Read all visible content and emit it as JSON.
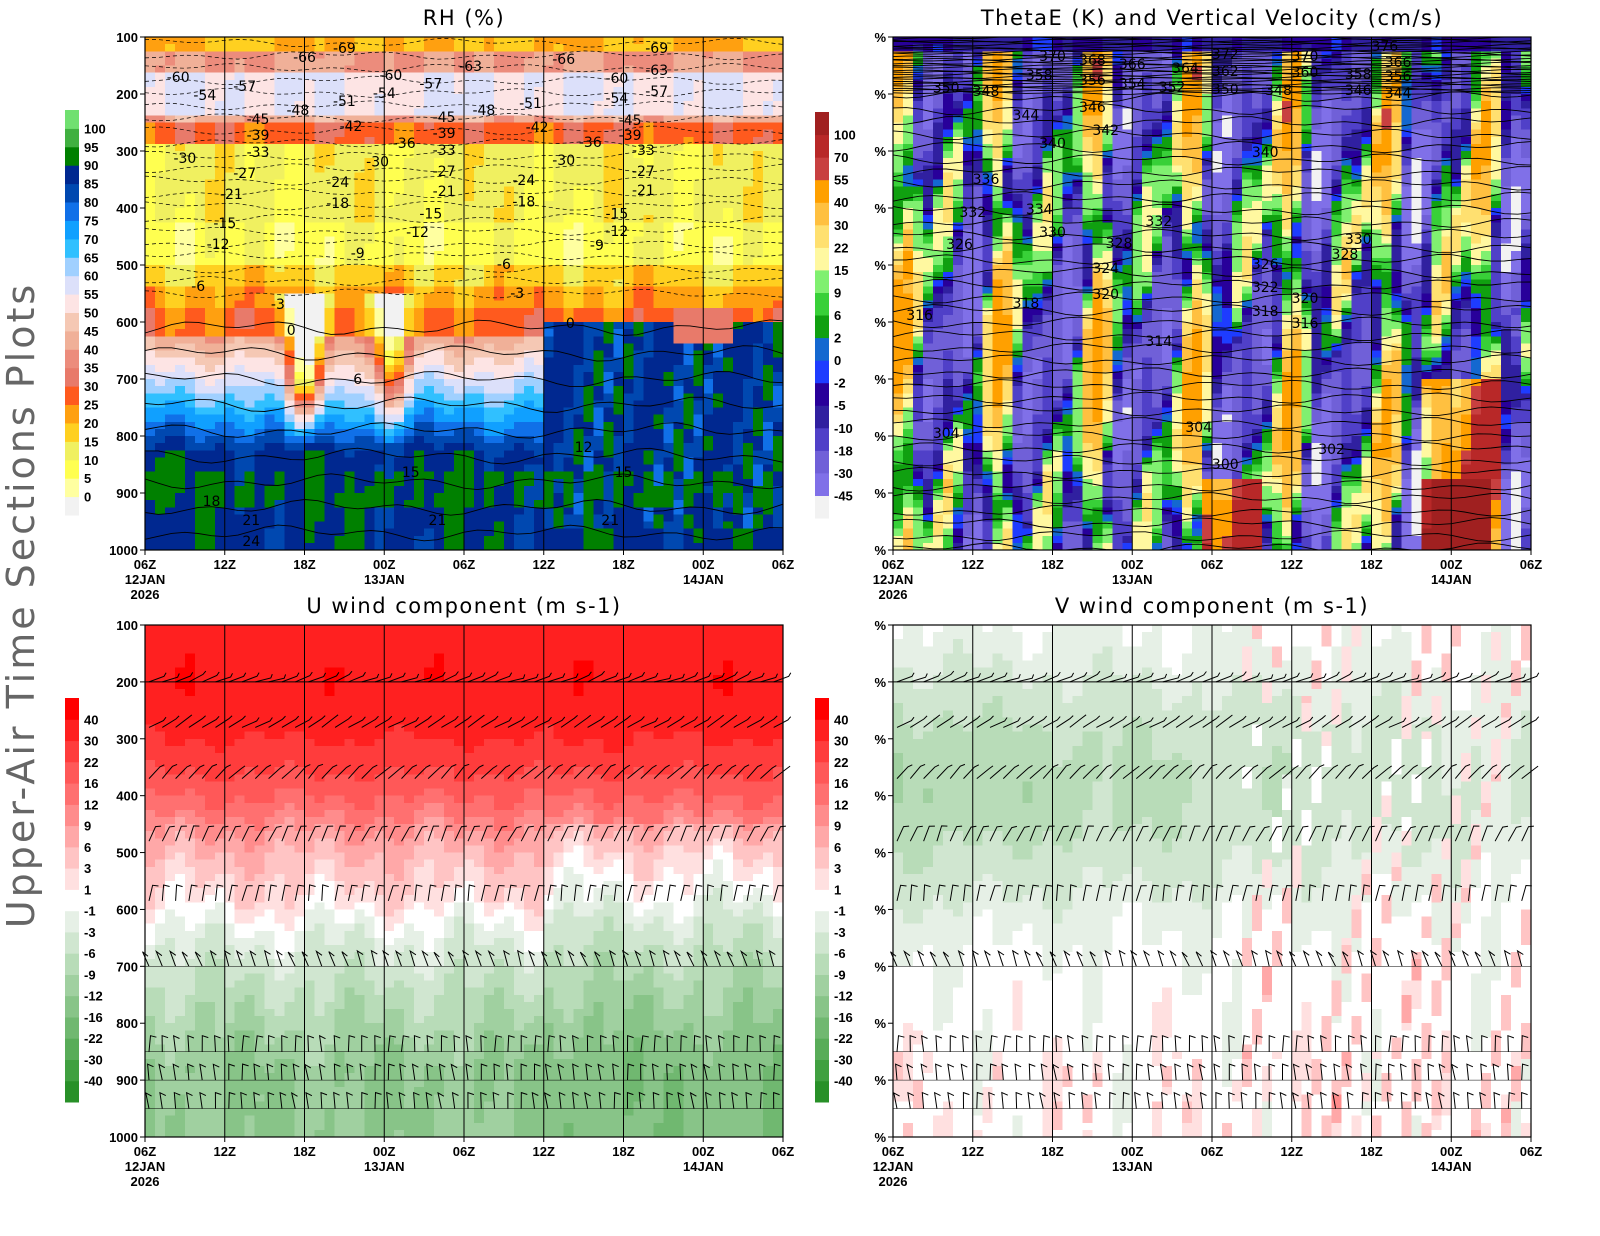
{
  "side_title": "Upper-Air Time Sections Plots",
  "xlim": [
    "2026-01-12T06:00",
    "2026-01-14T06:00"
  ],
  "xticks": [
    {
      "label": "06Z",
      "date": "12JAN",
      "year": "2026"
    },
    {
      "label": "12Z",
      "date": "",
      "year": ""
    },
    {
      "label": "18Z",
      "date": "",
      "year": ""
    },
    {
      "label": "00Z",
      "date": "13JAN",
      "year": ""
    },
    {
      "label": "06Z",
      "date": "",
      "year": ""
    },
    {
      "label": "12Z",
      "date": "",
      "year": ""
    },
    {
      "label": "18Z",
      "date": "",
      "year": ""
    },
    {
      "label": "00Z",
      "date": "14JAN",
      "year": ""
    },
    {
      "label": "06Z",
      "date": "",
      "year": ""
    }
  ],
  "chart_data": [
    {
      "id": "rh",
      "type": "heatmap",
      "title": "RH (%)",
      "ylim": [
        1000,
        100
      ],
      "yticks": [
        "100",
        "200",
        "300",
        "400",
        "500",
        "600",
        "700",
        "800",
        "900",
        "1000"
      ],
      "colorbar": {
        "levels": [
          0,
          5,
          10,
          15,
          20,
          25,
          30,
          35,
          40,
          45,
          50,
          55,
          60,
          65,
          70,
          75,
          80,
          85,
          90,
          95,
          100
        ],
        "colors": [
          "#f2f2f2",
          "#ffffa0",
          "#ffff50",
          "#f0f060",
          "#ffd020",
          "#ffa010",
          "#ff5a1e",
          "#e87a6a",
          "#ec8c7c",
          "#f0b098",
          "#f5c8b4",
          "#fde4e4",
          "#dce0fa",
          "#a0d0ff",
          "#30c0ff",
          "#10a0ff",
          "#1070e8",
          "#0048b0",
          "#002890",
          "#008000",
          "#40b040",
          "#70e070"
        ]
      },
      "contour_labels": [
        [
          -60,
          "2026-01-12T08:30",
          170
        ],
        [
          -54,
          "2026-01-12T10:30",
          202
        ],
        [
          -57,
          "2026-01-12T13:30",
          186
        ],
        [
          -66,
          "2026-01-12T18:00",
          135
        ],
        [
          -69,
          "2026-01-12T21:00",
          119
        ],
        [
          -48,
          "2026-01-12T17:30",
          228
        ],
        [
          -51,
          "2026-01-12T21:00",
          212
        ],
        [
          -60,
          "2026-01-13T00:30",
          167
        ],
        [
          -54,
          "2026-01-13T00:00",
          198
        ],
        [
          -57,
          "2026-01-13T03:30",
          182
        ],
        [
          -63,
          "2026-01-13T06:30",
          151
        ],
        [
          -45,
          "2026-01-12T14:30",
          244
        ],
        [
          -39,
          "2026-01-12T14:30",
          272
        ],
        [
          -33,
          "2026-01-12T14:30",
          302
        ],
        [
          -30,
          "2026-01-12T09:00",
          312
        ],
        [
          -27,
          "2026-01-12T13:30",
          339
        ],
        [
          -21,
          "2026-01-12T12:30",
          375
        ],
        [
          -15,
          "2026-01-12T12:00",
          426
        ],
        [
          -12,
          "2026-01-12T11:30",
          463
        ],
        [
          -6,
          "2026-01-12T10:00",
          537
        ],
        [
          -3,
          "2026-01-12T16:00",
          568
        ],
        [
          0,
          "2026-01-12T17:00",
          614
        ],
        [
          6,
          "2026-01-12T22:00",
          700
        ],
        [
          -42,
          "2026-01-12T21:30",
          256
        ],
        [
          -36,
          "2026-01-13T01:30",
          286
        ],
        [
          -30,
          "2026-01-12T23:30",
          318
        ],
        [
          -24,
          "2026-01-12T20:30",
          354
        ],
        [
          -18,
          "2026-01-12T20:30",
          391
        ],
        [
          -9,
          "2026-01-12T22:00",
          479
        ],
        [
          -45,
          "2026-01-13T04:30",
          240
        ],
        [
          -39,
          "2026-01-13T04:30",
          268
        ],
        [
          -33,
          "2026-01-13T04:30",
          298
        ],
        [
          -27,
          "2026-01-13T04:30",
          335
        ],
        [
          -21,
          "2026-01-13T04:30",
          370
        ],
        [
          -15,
          "2026-01-13T03:30",
          410
        ],
        [
          -12,
          "2026-01-13T02:30",
          442
        ],
        [
          -48,
          "2026-01-13T07:30",
          228
        ],
        [
          -51,
          "2026-01-13T11:00",
          216
        ],
        [
          -42,
          "2026-01-13T11:30",
          258
        ],
        [
          -24,
          "2026-01-13T10:30",
          351
        ],
        [
          -18,
          "2026-01-13T10:30",
          389
        ],
        [
          -6,
          "2026-01-13T09:00",
          498
        ],
        [
          -3,
          "2026-01-13T10:00",
          549
        ],
        [
          0,
          "2026-01-13T14:00",
          602
        ],
        [
          -66,
          "2026-01-13T13:30",
          139
        ],
        [
          -60,
          "2026-01-13T17:30",
          172
        ],
        [
          -54,
          "2026-01-13T17:30",
          207
        ],
        [
          -63,
          "2026-01-13T20:30",
          158
        ],
        [
          -57,
          "2026-01-13T20:30",
          195
        ],
        [
          -69,
          "2026-01-13T20:30",
          119
        ],
        [
          -45,
          "2026-01-13T18:30",
          246
        ],
        [
          -39,
          "2026-01-13T18:30",
          272
        ],
        [
          -36,
          "2026-01-13T15:30",
          284
        ],
        [
          -33,
          "2026-01-13T19:30",
          298
        ],
        [
          -27,
          "2026-01-13T19:30",
          335
        ],
        [
          -21,
          "2026-01-13T19:30",
          368
        ],
        [
          -15,
          "2026-01-13T17:30",
          410
        ],
        [
          -12,
          "2026-01-13T17:30",
          440
        ],
        [
          -9,
          "2026-01-13T16:00",
          465
        ],
        [
          -30,
          "2026-01-13T13:30",
          316
        ],
        [
          12,
          "2026-01-13T15:00",
          819
        ],
        [
          15,
          "2026-01-13T02:00",
          863
        ],
        [
          15,
          "2026-01-13T18:00",
          863
        ],
        [
          18,
          "2026-01-12T11:00",
          914
        ],
        [
          21,
          "2026-01-12T14:00",
          947
        ],
        [
          21,
          "2026-01-13T04:00",
          947
        ],
        [
          21,
          "2026-01-13T17:00",
          947
        ],
        [
          24,
          "2026-01-12T14:00",
          984
        ]
      ]
    },
    {
      "id": "thetae",
      "type": "heatmap",
      "title": "ThetaE (K) and Vertical Velocity (cm/s)",
      "ylim": [
        1000,
        100
      ],
      "yticks": [
        "%",
        "%",
        "%",
        "%",
        "%",
        "%",
        "%",
        "%",
        "%",
        "%"
      ],
      "colorbar": {
        "levels": [
          -45,
          -30,
          -18,
          -10,
          -5,
          -2,
          0,
          2,
          6,
          9,
          15,
          22,
          30,
          40,
          55,
          70,
          100
        ],
        "colors": [
          "#f2f2f2",
          "#8070e8",
          "#7060d8",
          "#5040c8",
          "#3020a0",
          "#28009a",
          "#1e3cff",
          "#1468d0",
          "#10a010",
          "#38d038",
          "#80f070",
          "#fff8a0",
          "#ffe070",
          "#ffc040",
          "#ffa000",
          "#c84040",
          "#b82828",
          "#a02020"
        ]
      },
      "contour_labels": [
        [
          370,
          "2026-01-12T18:00",
          133
        ],
        [
          368,
          "2026-01-12T21:00",
          140
        ],
        [
          366,
          "2026-01-13T00:00",
          147
        ],
        [
          358,
          "2026-01-12T17:00",
          167
        ],
        [
          356,
          "2026-01-12T21:00",
          175
        ],
        [
          354,
          "2026-01-13T00:00",
          182
        ],
        [
          364,
          "2026-01-13T04:00",
          154
        ],
        [
          362,
          "2026-01-13T07:00",
          160
        ],
        [
          372,
          "2026-01-13T07:00",
          130
        ],
        [
          352,
          "2026-01-13T03:00",
          188
        ],
        [
          350,
          "2026-01-13T07:00",
          191
        ],
        [
          348,
          "2026-01-13T11:00",
          193
        ],
        [
          370,
          "2026-01-13T13:00",
          133
        ],
        [
          360,
          "2026-01-13T13:00",
          161
        ],
        [
          376,
          "2026-01-13T19:00",
          116
        ],
        [
          366,
          "2026-01-13T20:00",
          144
        ],
        [
          358,
          "2026-01-13T17:00",
          165
        ],
        [
          356,
          "2026-01-13T20:00",
          168
        ],
        [
          346,
          "2026-01-13T17:00",
          193
        ],
        [
          344,
          "2026-01-13T20:00",
          198
        ],
        [
          350,
          "2026-01-12T10:00",
          189
        ],
        [
          348,
          "2026-01-12T13:00",
          195
        ],
        [
          344,
          "2026-01-12T16:00",
          237
        ],
        [
          346,
          "2026-01-12T21:00",
          223
        ],
        [
          342,
          "2026-01-12T22:00",
          263
        ],
        [
          340,
          "2026-01-12T18:00",
          286
        ],
        [
          340,
          "2026-01-13T10:00",
          302
        ],
        [
          336,
          "2026-01-12T13:00",
          349
        ],
        [
          332,
          "2026-01-12T12:00",
          407
        ],
        [
          334,
          "2026-01-12T17:00",
          402
        ],
        [
          330,
          "2026-01-12T18:00",
          442
        ],
        [
          326,
          "2026-01-12T11:00",
          463
        ],
        [
          328,
          "2026-01-12T23:00",
          461
        ],
        [
          332,
          "2026-01-13T02:00",
          423
        ],
        [
          324,
          "2026-01-12T22:00",
          505
        ],
        [
          320,
          "2026-01-12T22:00",
          551
        ],
        [
          318,
          "2026-01-12T16:00",
          567
        ],
        [
          316,
          "2026-01-12T08:00",
          588
        ],
        [
          326,
          "2026-01-13T10:00",
          498
        ],
        [
          322,
          "2026-01-13T10:00",
          539
        ],
        [
          318,
          "2026-01-13T10:00",
          581
        ],
        [
          320,
          "2026-01-13T13:00",
          558
        ],
        [
          316,
          "2026-01-13T13:00",
          602
        ],
        [
          330,
          "2026-01-13T17:00",
          454
        ],
        [
          328,
          "2026-01-13T16:00",
          481
        ],
        [
          314,
          "2026-01-13T02:00",
          633
        ],
        [
          304,
          "2026-01-12T10:00",
          795
        ],
        [
          304,
          "2026-01-13T05:00",
          784
        ],
        [
          302,
          "2026-01-13T15:00",
          823
        ],
        [
          300,
          "2026-01-13T07:00",
          849
        ]
      ]
    },
    {
      "id": "u",
      "type": "heatmap",
      "title": "U wind component (m s-1)",
      "ylim": [
        1000,
        100
      ],
      "yticks": [
        "100",
        "200",
        "300",
        "400",
        "500",
        "600",
        "700",
        "800",
        "900",
        "1000"
      ],
      "wind_barbs": true,
      "colorbar": {
        "levels": [
          -40,
          -30,
          -22,
          -16,
          -12,
          -9,
          -6,
          -3,
          -1,
          1,
          3,
          6,
          9,
          12,
          16,
          22,
          30,
          40
        ],
        "colors": [
          "#289028",
          "#40a040",
          "#58ac58",
          "#70b870",
          "#88c488",
          "#a0d0a0",
          "#b8dcb8",
          "#d0e6d0",
          "#e6f0e6",
          "#ffffff",
          "#ffe0e0",
          "#ffc4c4",
          "#ffa8a8",
          "#ff8c8c",
          "#ff7070",
          "#ff5858",
          "#ff3c3c",
          "#ff2020",
          "#ff0000"
        ]
      },
      "contour_labels": []
    },
    {
      "id": "v",
      "type": "heatmap",
      "title": "V wind component (m s-1)",
      "ylim": [
        1000,
        100
      ],
      "yticks": [
        "%",
        "%",
        "%",
        "%",
        "%",
        "%",
        "%",
        "%",
        "%",
        "%"
      ],
      "wind_barbs": true,
      "colorbar": {
        "levels": [
          -40,
          -30,
          -22,
          -16,
          -12,
          -9,
          -6,
          -3,
          -1,
          1,
          3,
          6,
          9,
          12,
          16,
          22,
          30,
          40
        ],
        "colors": [
          "#289028",
          "#40a040",
          "#58ac58",
          "#70b870",
          "#88c488",
          "#a0d0a0",
          "#b8dcb8",
          "#d0e6d0",
          "#e6f0e6",
          "#ffffff",
          "#ffe0e0",
          "#ffc4c4",
          "#ffa8a8",
          "#ff8c8c",
          "#ff7070",
          "#ff5858",
          "#ff3c3c",
          "#ff2020",
          "#ff0000"
        ]
      },
      "contour_labels": []
    }
  ]
}
